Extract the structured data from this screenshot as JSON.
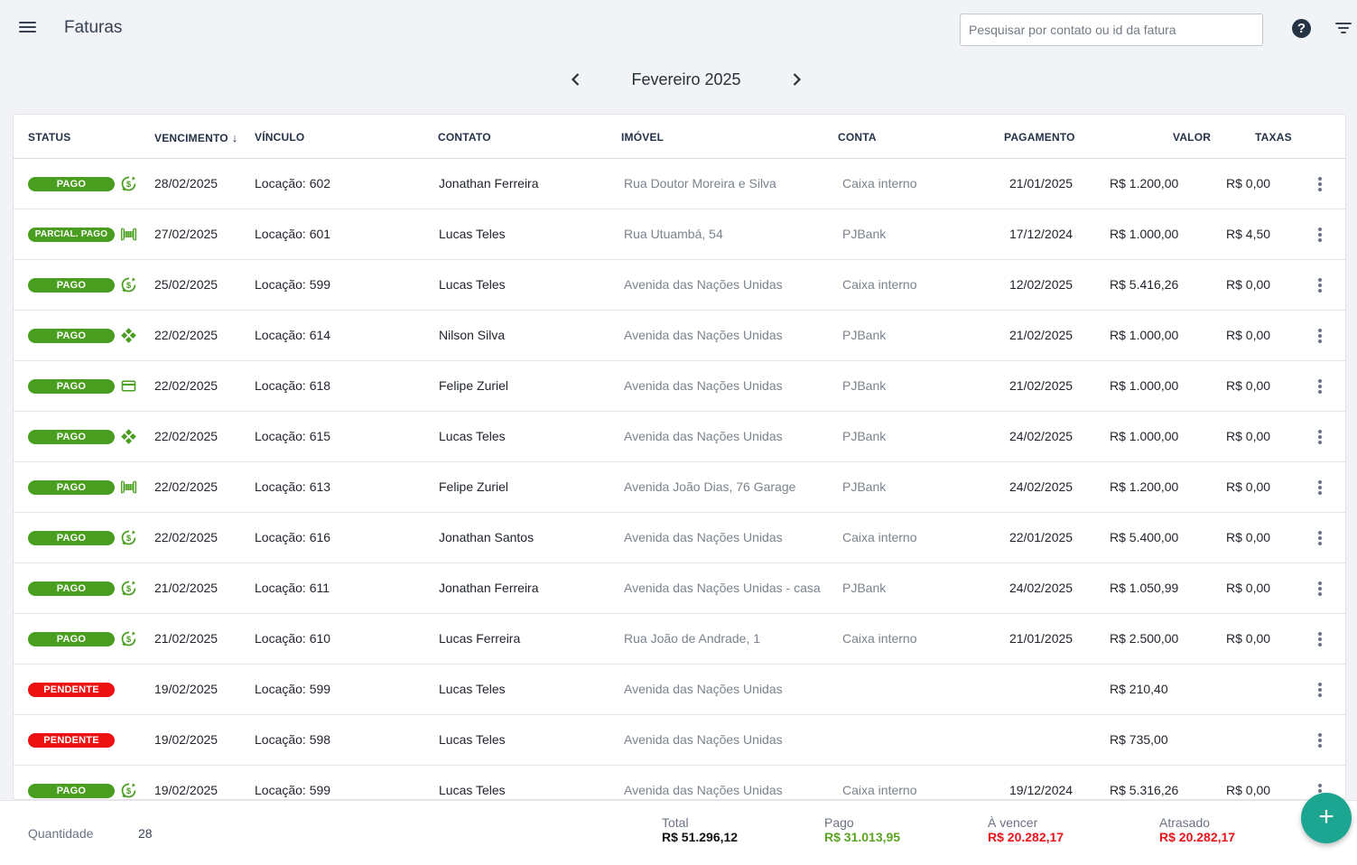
{
  "header": {
    "title": "Faturas",
    "search_placeholder": "Pesquisar por contato ou id da fatura",
    "help_label": "?"
  },
  "month_nav": {
    "label": "Fevereiro 2025"
  },
  "table": {
    "columns": {
      "status": "STATUS",
      "vencimento": "VENCIMENTO",
      "vinculo": "VÍNCULO",
      "contato": "CONTATO",
      "imovel": "IMÓVEL",
      "conta": "CONTA",
      "pagamento": "PAGAMENTO",
      "valor": "VALOR",
      "taxas": "TAXAS"
    },
    "sort_indicator": "↓",
    "rows": [
      {
        "status": "PAGO",
        "icon": "recurring-payment-icon",
        "vencimento": "28/02/2025",
        "vinculo": "Locação: 602",
        "contato": "Jonathan Ferreira",
        "imovel": "Rua Doutor Moreira e Silva",
        "conta": "Caixa interno",
        "pagamento": "21/01/2025",
        "valor": "R$ 1.200,00",
        "taxas": "R$ 0,00"
      },
      {
        "status": "PARCIAL. PAGO",
        "icon": "barcode-icon",
        "vencimento": "27/02/2025",
        "vinculo": "Locação: 601",
        "contato": "Lucas Teles",
        "imovel": "Rua Utuambá, 54",
        "conta": "PJBank",
        "pagamento": "17/12/2024",
        "valor": "R$ 1.000,00",
        "taxas": "R$ 4,50"
      },
      {
        "status": "PAGO",
        "icon": "recurring-payment-icon",
        "vencimento": "25/02/2025",
        "vinculo": "Locação: 599",
        "contato": "Lucas Teles",
        "imovel": "Avenida das Nações Unidas",
        "conta": "Caixa interno",
        "pagamento": "12/02/2025",
        "valor": "R$ 5.416,26",
        "taxas": "R$ 0,00"
      },
      {
        "status": "PAGO",
        "icon": "pix-icon",
        "vencimento": "22/02/2025",
        "vinculo": "Locação: 614",
        "contato": "Nilson Silva",
        "imovel": "Avenida das Nações Unidas",
        "conta": "PJBank",
        "pagamento": "21/02/2025",
        "valor": "R$ 1.000,00",
        "taxas": "R$ 0,00"
      },
      {
        "status": "PAGO",
        "icon": "credit-card-icon",
        "vencimento": "22/02/2025",
        "vinculo": "Locação: 618",
        "contato": "Felipe Zuriel",
        "imovel": "Avenida das Nações Unidas",
        "conta": "PJBank",
        "pagamento": "21/02/2025",
        "valor": "R$ 1.000,00",
        "taxas": "R$ 0,00"
      },
      {
        "status": "PAGO",
        "icon": "pix-icon",
        "vencimento": "22/02/2025",
        "vinculo": "Locação: 615",
        "contato": "Lucas Teles",
        "imovel": "Avenida das Nações Unidas",
        "conta": "PJBank",
        "pagamento": "24/02/2025",
        "valor": "R$ 1.000,00",
        "taxas": "R$ 0,00"
      },
      {
        "status": "PAGO",
        "icon": "barcode-icon",
        "vencimento": "22/02/2025",
        "vinculo": "Locação: 613",
        "contato": "Felipe Zuriel",
        "imovel": "Avenida João Dias, 76 Garage",
        "conta": "PJBank",
        "pagamento": "24/02/2025",
        "valor": "R$ 1.200,00",
        "taxas": "R$ 0,00"
      },
      {
        "status": "PAGO",
        "icon": "recurring-payment-icon",
        "vencimento": "22/02/2025",
        "vinculo": "Locação: 616",
        "contato": "Jonathan Santos",
        "imovel": "Avenida das Nações Unidas",
        "conta": "Caixa interno",
        "pagamento": "22/01/2025",
        "valor": "R$ 5.400,00",
        "taxas": "R$ 0,00"
      },
      {
        "status": "PAGO",
        "icon": "recurring-payment-icon",
        "vencimento": "21/02/2025",
        "vinculo": "Locação: 611",
        "contato": "Jonathan Ferreira",
        "imovel": "Avenida das Nações Unidas - casa",
        "conta": "PJBank",
        "pagamento": "24/02/2025",
        "valor": "R$ 1.050,99",
        "taxas": "R$ 0,00"
      },
      {
        "status": "PAGO",
        "icon": "recurring-payment-icon",
        "vencimento": "21/02/2025",
        "vinculo": "Locação: 610",
        "contato": "Lucas Ferreira",
        "imovel": "Rua João de Andrade, 1",
        "conta": "Caixa interno",
        "pagamento": "21/01/2025",
        "valor": "R$ 2.500,00",
        "taxas": "R$ 0,00"
      },
      {
        "status": "PENDENTE",
        "icon": "",
        "vencimento": "19/02/2025",
        "vinculo": "Locação: 599",
        "contato": "Lucas Teles",
        "imovel": "Avenida das Nações Unidas",
        "conta": "",
        "pagamento": "",
        "valor": "R$ 210,40",
        "taxas": ""
      },
      {
        "status": "PENDENTE",
        "icon": "",
        "vencimento": "19/02/2025",
        "vinculo": "Locação: 598",
        "contato": "Lucas Teles",
        "imovel": "Avenida das Nações Unidas",
        "conta": "",
        "pagamento": "",
        "valor": "R$ 735,00",
        "taxas": ""
      },
      {
        "status": "PAGO",
        "icon": "recurring-payment-icon",
        "vencimento": "19/02/2025",
        "vinculo": "Locação: 599",
        "contato": "Lucas Teles",
        "imovel": "Avenida das Nações Unidas",
        "conta": "Caixa interno",
        "pagamento": "19/12/2024",
        "valor": "R$ 5.316,26",
        "taxas": "R$ 0,00"
      }
    ]
  },
  "footer": {
    "quantity_label": "Quantidade",
    "quantity_value": "28",
    "total_label": "Total",
    "total_value": "R$ 51.296,12",
    "paid_label": "Pago",
    "paid_value": "R$ 31.013,95",
    "upcoming_label": "À vencer",
    "upcoming_value": "R$ 20.282,17",
    "overdue_label": "Atrasado",
    "overdue_value": "R$ 20.282,17"
  },
  "fab": {
    "label": "+"
  },
  "colors": {
    "paid": "#4a9e1f",
    "pending": "#ee1111",
    "paid_text": "#5aa322",
    "overdue_text": "#e8141a",
    "icon_green": "#4a9e1f",
    "fab": "#1ca691"
  }
}
